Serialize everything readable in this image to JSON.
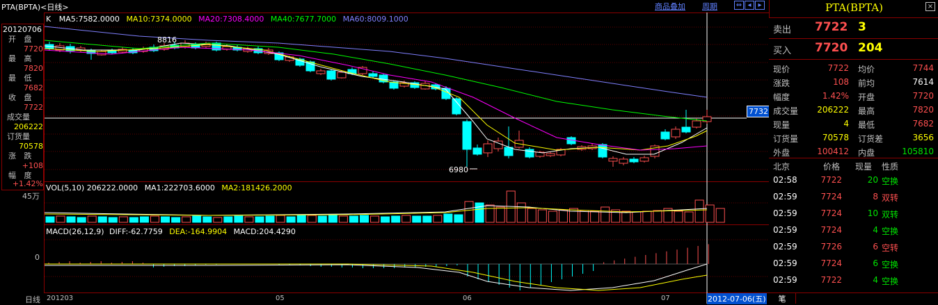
{
  "header": {
    "symbol": "PTA(BPTA)<日线>",
    "overlay_link": "商品叠加",
    "cycle_link": "周期"
  },
  "main_chart": {
    "mode_label": "K",
    "ma": [
      {
        "label": "MA5:7582.0000",
        "color": "#ffffff"
      },
      {
        "label": "MA10:7374.0000",
        "color": "#ffff00"
      },
      {
        "label": "MA20:7308.4000",
        "color": "#ff00ff"
      },
      {
        "label": "MA40:7677.7000",
        "color": "#00ff00"
      },
      {
        "label": "MA60:8009.1000",
        "color": "#8080ff"
      }
    ],
    "high_mark": "8816",
    "low_mark": "6980",
    "price_tag": "7732"
  },
  "info_panel": {
    "date": "20120706",
    "open_label": "开 盘",
    "open": "7720",
    "high_label": "最 高",
    "high": "7820",
    "low_label": "最 低",
    "low": "7682",
    "close_label": "收 盘",
    "close": "7722",
    "vol_label": "成交量",
    "vol": "206222",
    "oi_label": "订货量",
    "oi": "70578",
    "chg_label": "涨 跌",
    "chg": "+108",
    "pct_label": "幅 度",
    "pct": "+1.42%",
    "vol_axis": "45万"
  },
  "volume_chart": {
    "title": "VOL(5,10)",
    "value": "206222.0000",
    "ma1": "MA1:222703.6000",
    "ma2": "MA2:181426.2000"
  },
  "macd_chart": {
    "title": "MACD(26,12,9)",
    "diff": "DIFF:-62.7759",
    "dea": "DEA:-164.9904",
    "macd": "MACD:204.4290",
    "zero": "0"
  },
  "x_axis": {
    "period": "日线",
    "labels": [
      "201203",
      "05",
      "06",
      "07"
    ],
    "cursor_date": "2012-07-06(五)"
  },
  "quote": {
    "title": "PTA(BPTA)",
    "sell_label": "卖出",
    "sell_price": "7722",
    "sell_qty": "3",
    "buy_label": "买入",
    "buy_price": "7720",
    "buy_qty": "204",
    "stats": [
      {
        "k1": "现价",
        "v1": "7722",
        "c1": "#ff5050",
        "k2": "均价",
        "v2": "7744",
        "c2": "#ff5050"
      },
      {
        "k1": "涨跌",
        "v1": "108",
        "c1": "#ff5050",
        "k2": "前均",
        "v2": "7614",
        "c2": "#ffffff"
      },
      {
        "k1": "幅度",
        "v1": "1.42%",
        "c1": "#ff5050",
        "k2": "开盘",
        "v2": "7720",
        "c2": "#ff5050"
      },
      {
        "k1": "成交量",
        "v1": "206222",
        "c1": "#ffff00",
        "k2": "最高",
        "v2": "7820",
        "c2": "#ff5050"
      },
      {
        "k1": "现量",
        "v1": "4",
        "c1": "#ffff00",
        "k2": "最低",
        "v2": "7682",
        "c2": "#ff5050"
      },
      {
        "k1": "订货量",
        "v1": "70578",
        "c1": "#ffff00",
        "k2": "订货差",
        "v2": "3656",
        "c2": "#ffff00"
      },
      {
        "k1": "外盘",
        "v1": "100412",
        "c1": "#ff5050",
        "k2": "内盘",
        "v2": "105810",
        "c2": "#00e600"
      }
    ],
    "ticks_header": {
      "loc": "北京",
      "price": "价格",
      "qty": "现量",
      "nature": "性质"
    },
    "ticks": [
      {
        "time": "02:58",
        "price": "7722",
        "qty": "20",
        "nature": "空换",
        "color": "#00e600"
      },
      {
        "time": "02:59",
        "price": "7724",
        "qty": "8",
        "nature": "双转",
        "color": "#ff5050"
      },
      {
        "time": "02:59",
        "price": "7724",
        "qty": "10",
        "nature": "双转",
        "color": "#00e600"
      },
      {
        "time": "02:59",
        "price": "7724",
        "qty": "4",
        "nature": "空换",
        "color": "#00e600"
      },
      {
        "time": "02:59",
        "price": "7726",
        "qty": "6",
        "nature": "空转",
        "color": "#ff5050"
      },
      {
        "time": "02:59",
        "price": "7724",
        "qty": "6",
        "nature": "空换",
        "color": "#00e600"
      },
      {
        "time": "02:59",
        "price": "7722",
        "qty": "4",
        "nature": "空换",
        "color": "#00e600"
      }
    ],
    "footer_tab": "笔"
  }
}
